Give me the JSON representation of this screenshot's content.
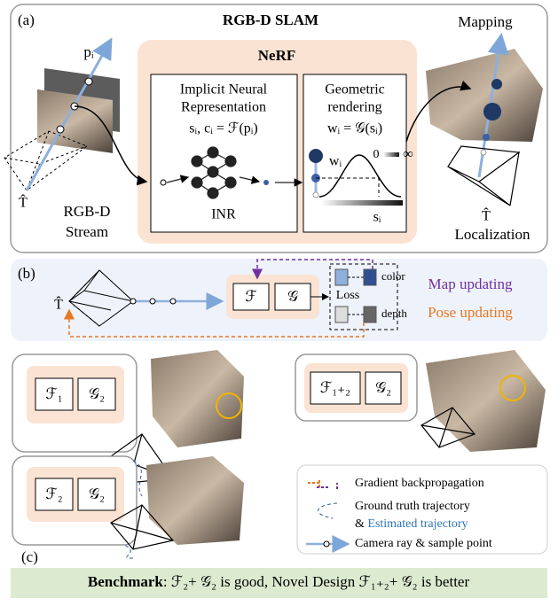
{
  "panel_a": {
    "label": "(a)",
    "title": "RGB-D SLAM",
    "nerf": "NeRF",
    "inr_title": [
      "Implicit Neural",
      "Representation"
    ],
    "inr_eq": "sᵢ, cᵢ = ℱ(pᵢ)",
    "inr": "INR",
    "geo_title": [
      "Geometric",
      "rendering"
    ],
    "geo_eq": "wᵢ = 𝒢(sᵢ)",
    "w": "wᵢ",
    "zero": "0",
    "inf": "∞",
    "s": "sᵢ",
    "p": "pᵢ",
    "t_hat": "T̂",
    "stream": [
      "RGB-D",
      "Stream"
    ],
    "mapping": "Mapping",
    "localization": "Localization"
  },
  "panel_b": {
    "label": "(b)",
    "t_hat": "T̂",
    "f": "ℱ",
    "g": "𝒢",
    "loss": "Loss",
    "color": "color",
    "depth": "depth",
    "map_updating": "Map updating",
    "pose_updating": "Pose updating"
  },
  "panel_c": {
    "label": "(c)",
    "boxes": [
      [
        "ℱ₁",
        "𝒢₂"
      ],
      [
        "ℱ₁₊₂",
        "𝒢₂"
      ],
      [
        "ℱ₂",
        "𝒢₂"
      ]
    ],
    "legend": {
      "gradient": "Gradient backpropagation",
      "gt": "Ground truth trajectory",
      "amp": "& ",
      "est": "Estimated trajectory",
      "ray": "Camera ray & sample point"
    }
  },
  "banner": {
    "bold": "Benchmark",
    "rest": ": ℱ₂+ 𝒢₂ is good, Novel Design ℱ₁₊₂+ 𝒢₂ is better"
  }
}
